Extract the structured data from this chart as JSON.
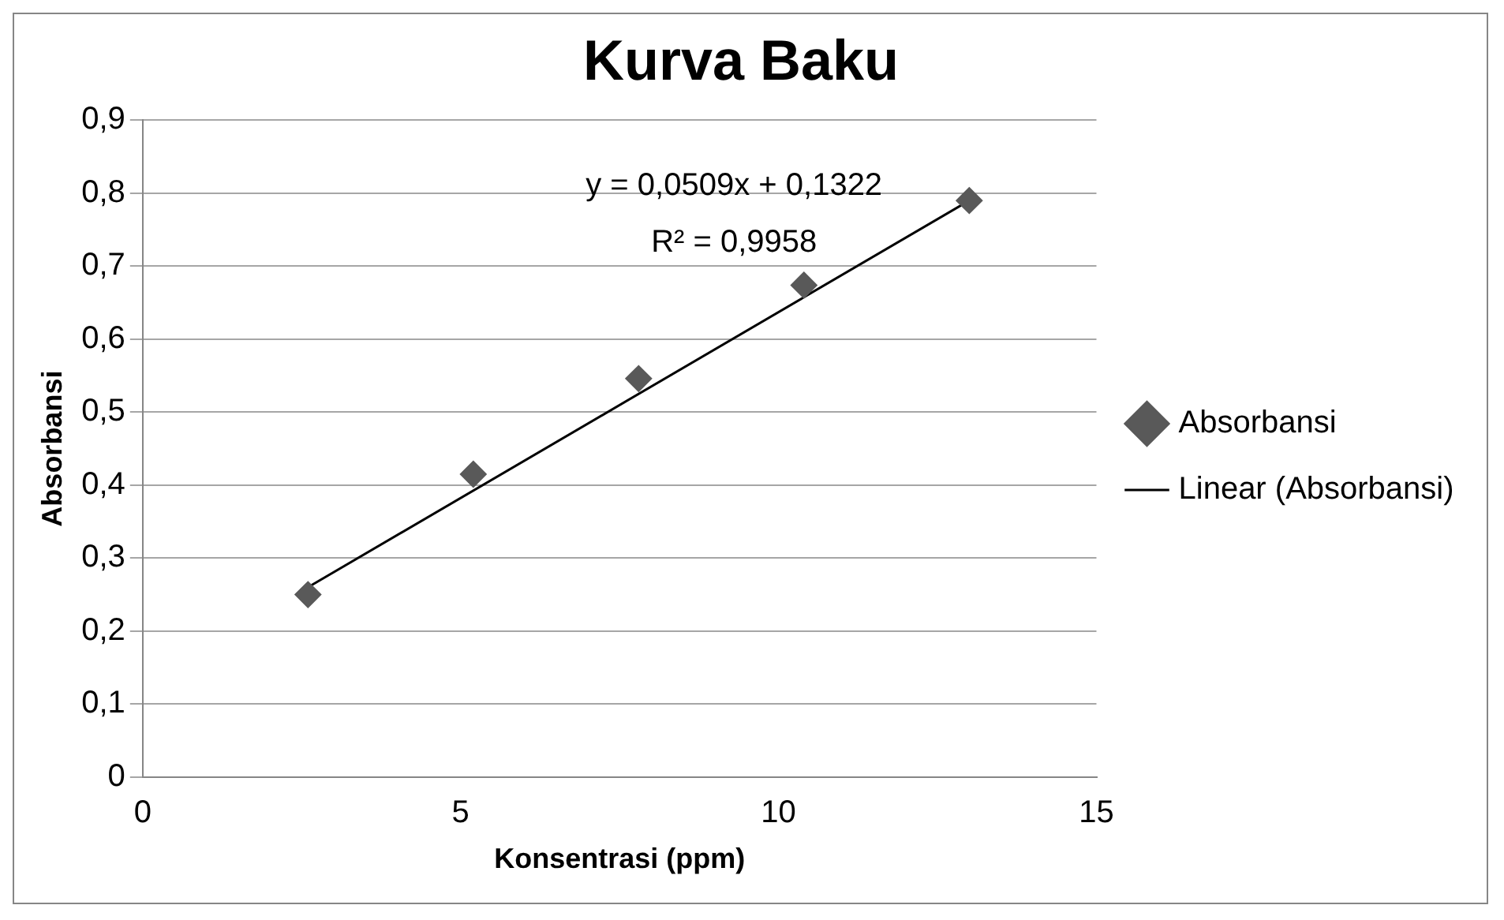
{
  "chart_data": {
    "type": "scatter",
    "title": "Kurva Baku",
    "xlabel": "Konsentrasi (ppm)",
    "ylabel": "Absorbansi",
    "x": [
      2.6,
      5.2,
      7.8,
      10.4,
      13
    ],
    "series": [
      {
        "name": "Absorbansi",
        "color": "#595959",
        "marker": "diamond",
        "values": [
          0.25,
          0.415,
          0.546,
          0.674,
          0.79
        ]
      },
      {
        "name": "Linear (Absorbansi)",
        "type": "line",
        "color": "#000000",
        "marker": "none",
        "x": [
          2.6,
          13
        ],
        "values": [
          0.26,
          0.79
        ]
      }
    ],
    "xlim": [
      0,
      15
    ],
    "xticks": [
      0,
      5,
      10,
      15
    ],
    "ylim": [
      0,
      0.9
    ],
    "yticks": [
      0,
      {
        "value": 0.1,
        "label": "0,1"
      },
      {
        "value": 0.2,
        "label": "0,2"
      },
      {
        "value": 0.3,
        "label": "0,3"
      },
      {
        "value": 0.4,
        "label": "0,4"
      },
      {
        "value": 0.5,
        "label": "0,5"
      },
      {
        "value": 0.6,
        "label": "0,6"
      },
      {
        "value": 0.7,
        "label": "0,7"
      },
      {
        "value": 0.8,
        "label": "0,8"
      },
      {
        "value": 0.9,
        "label": "0,9"
      }
    ],
    "grid": "y",
    "legend": "right",
    "annotations": [
      "y = 0,0509x + 0,1322",
      "R² = 0,9958"
    ]
  }
}
